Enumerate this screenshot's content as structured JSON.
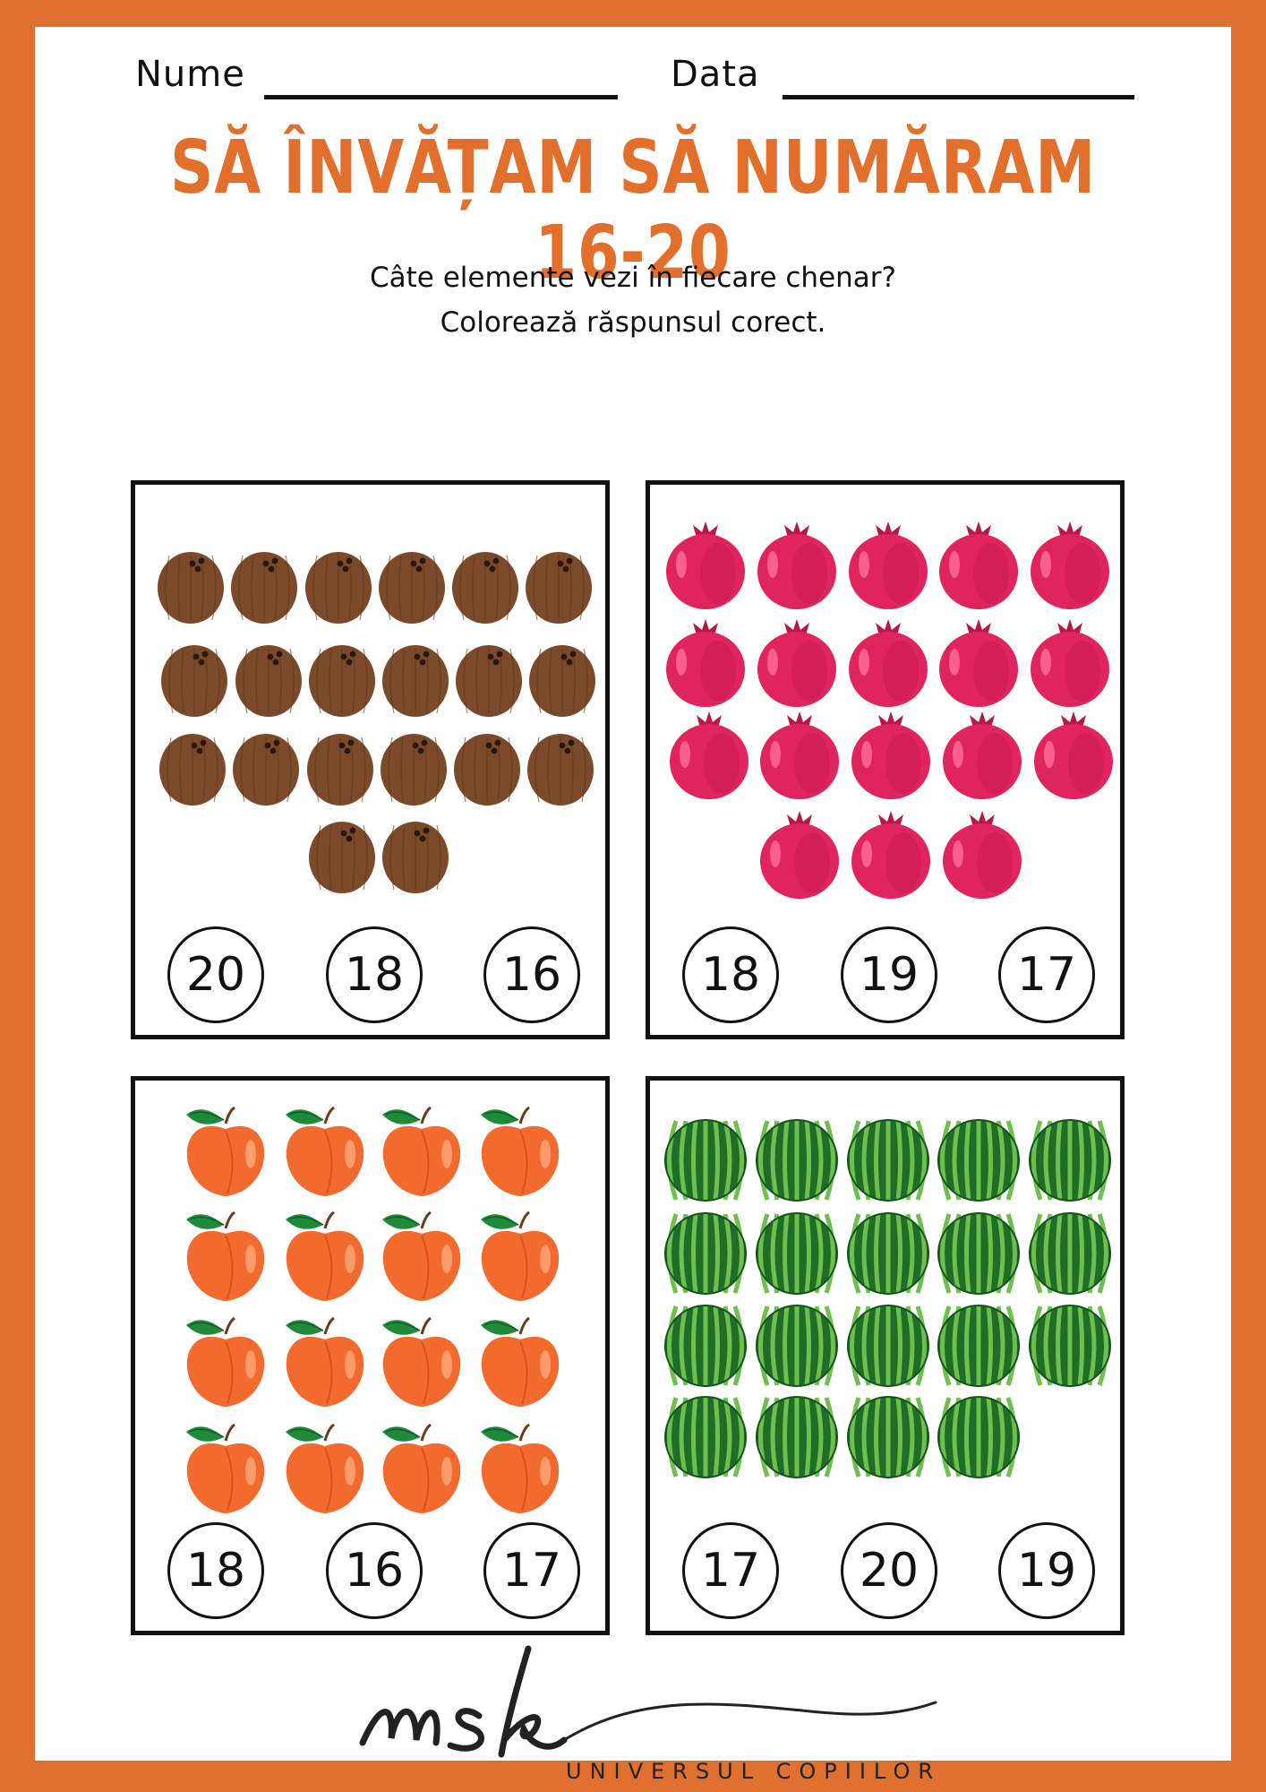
{
  "header": {
    "name_label": "Nume",
    "date_label": "Data"
  },
  "title": "SĂ ÎNVĂȚAM SĂ NUMĂRAM 16-20",
  "instructions": {
    "line1": "Câte elemente vezi în fiecare chenar?",
    "line2": "Colorează răspunsul corect."
  },
  "colors": {
    "border": "#e07030",
    "title": "#e2702c",
    "coconut": "#7a4a2a",
    "pomegranate": "#e0245e",
    "peach": "#f26a2e",
    "watermelon": "#2e8b3a"
  },
  "boxes": [
    {
      "item": "coconut-icon",
      "count": 20,
      "options": [
        "20",
        "18",
        "16"
      ]
    },
    {
      "item": "pomegranate-icon",
      "count": 18,
      "options": [
        "18",
        "19",
        "17"
      ]
    },
    {
      "item": "peach-icon",
      "count": 16,
      "options": [
        "18",
        "16",
        "17"
      ]
    },
    {
      "item": "watermelon-icon",
      "count": 19,
      "options": [
        "17",
        "20",
        "19"
      ]
    }
  ],
  "logo": {
    "mark": "msk",
    "tagline": "UNIVERSUL COPIILOR"
  }
}
